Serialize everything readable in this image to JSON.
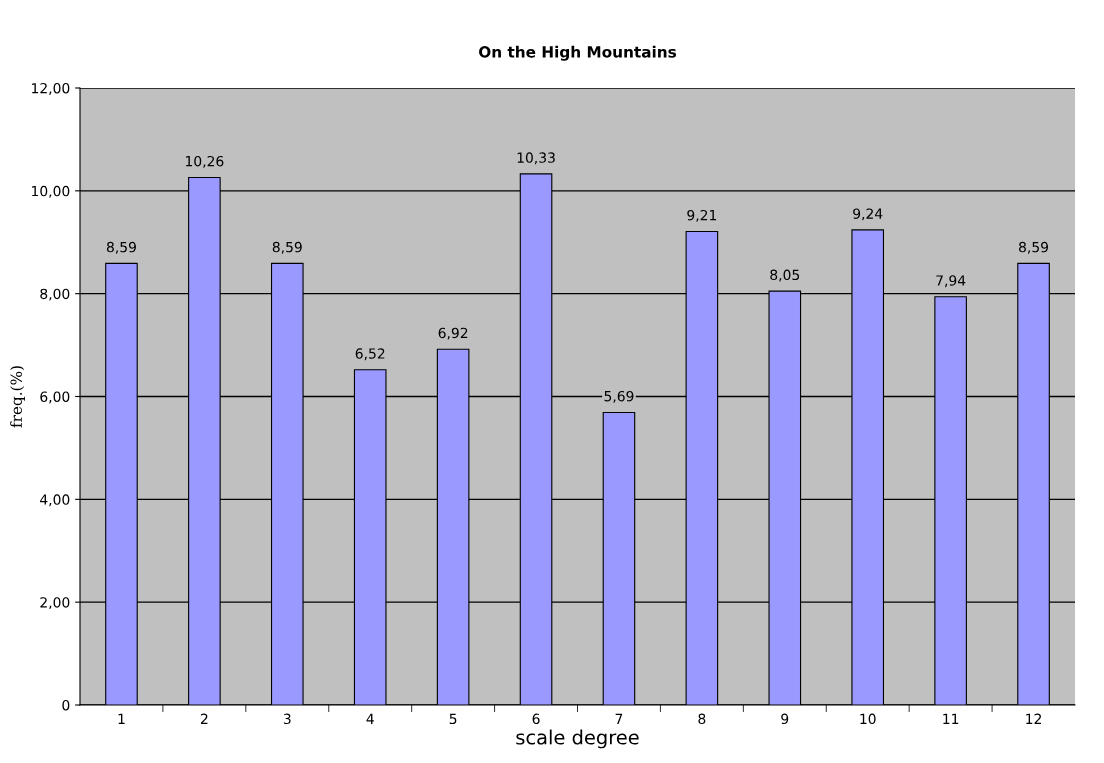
{
  "chart_data": {
    "type": "bar",
    "title": "On the High Mountains",
    "xlabel": "scale degree",
    "ylabel": "freq.(%)",
    "categories": [
      "1",
      "2",
      "3",
      "4",
      "5",
      "6",
      "7",
      "8",
      "9",
      "10",
      "11",
      "12"
    ],
    "values": [
      8.59,
      10.26,
      8.59,
      6.52,
      6.92,
      10.33,
      5.69,
      9.21,
      8.05,
      9.24,
      7.94,
      8.59
    ],
    "value_labels": [
      "8,59",
      "10,26",
      "8,59",
      "6,52",
      "6,92",
      "10,33",
      "5,69",
      "9,21",
      "8,05",
      "9,24",
      "7,94",
      "8,59"
    ],
    "color": "#9999ff",
    "ylim": [
      0,
      12
    ],
    "yticks": [
      0,
      {
        "value": 2,
        "label": "2,00"
      },
      {
        "value": 4,
        "label": "4,00"
      },
      {
        "value": 6,
        "label": "6,00"
      },
      {
        "value": 8,
        "label": "8,00"
      },
      {
        "value": 10,
        "label": "10,00"
      },
      {
        "value": 12,
        "label": "12,00"
      }
    ],
    "grid": "y",
    "legend": false
  }
}
